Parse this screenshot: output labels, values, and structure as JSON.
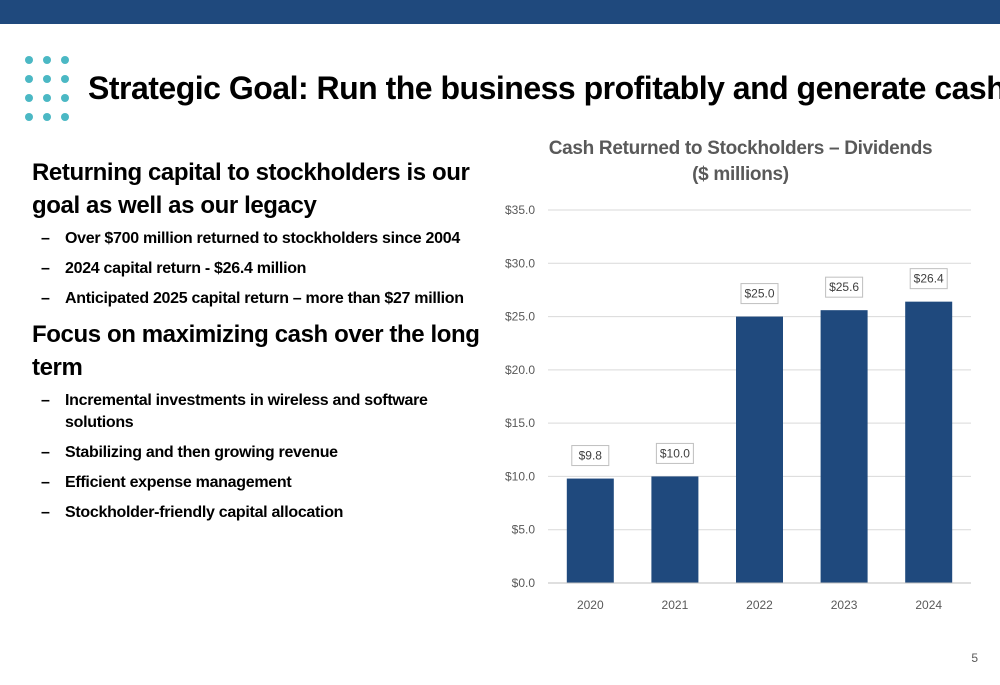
{
  "slide": {
    "title": "Strategic Goal: Run the business profitably and generate cash",
    "page_number": "5",
    "accent_color": "#1f497d",
    "dot_color": "#4bb8c4"
  },
  "left": {
    "heading1": "Returning capital to stockholders is our goal as well as our legacy",
    "bullets1": [
      "Over $700 million returned to stockholders since 2004",
      "2024 capital return - $26.4 million",
      "Anticipated 2025 capital return – more than $27 million"
    ],
    "heading2": "Focus on maximizing cash over the long term",
    "bullets2": [
      "Incremental investments in wireless and software solutions",
      "Stabilizing and then growing revenue",
      "Efficient expense management",
      "Stockholder-friendly capital allocation"
    ],
    "dash": "–"
  },
  "chart_data": {
    "type": "bar",
    "title": "Cash Returned to Stockholders – Dividends",
    "subtitle": "($ millions)",
    "categories": [
      "2020",
      "2021",
      "2022",
      "2023",
      "2024"
    ],
    "values": [
      9.8,
      10.0,
      25.0,
      25.6,
      26.4
    ],
    "data_labels": [
      "$9.8",
      "$10.0",
      "$25.0",
      "$25.6",
      "$26.4"
    ],
    "y_ticks": [
      0,
      5,
      10,
      15,
      20,
      25,
      30,
      35
    ],
    "y_tick_labels": [
      "$0.0",
      "$5.0",
      "$10.0",
      "$15.0",
      "$20.0",
      "$25.0",
      "$30.0",
      "$35.0"
    ],
    "ylim": [
      0,
      35
    ],
    "grid": true,
    "legend": "none",
    "bar_color": "#1f497d"
  }
}
